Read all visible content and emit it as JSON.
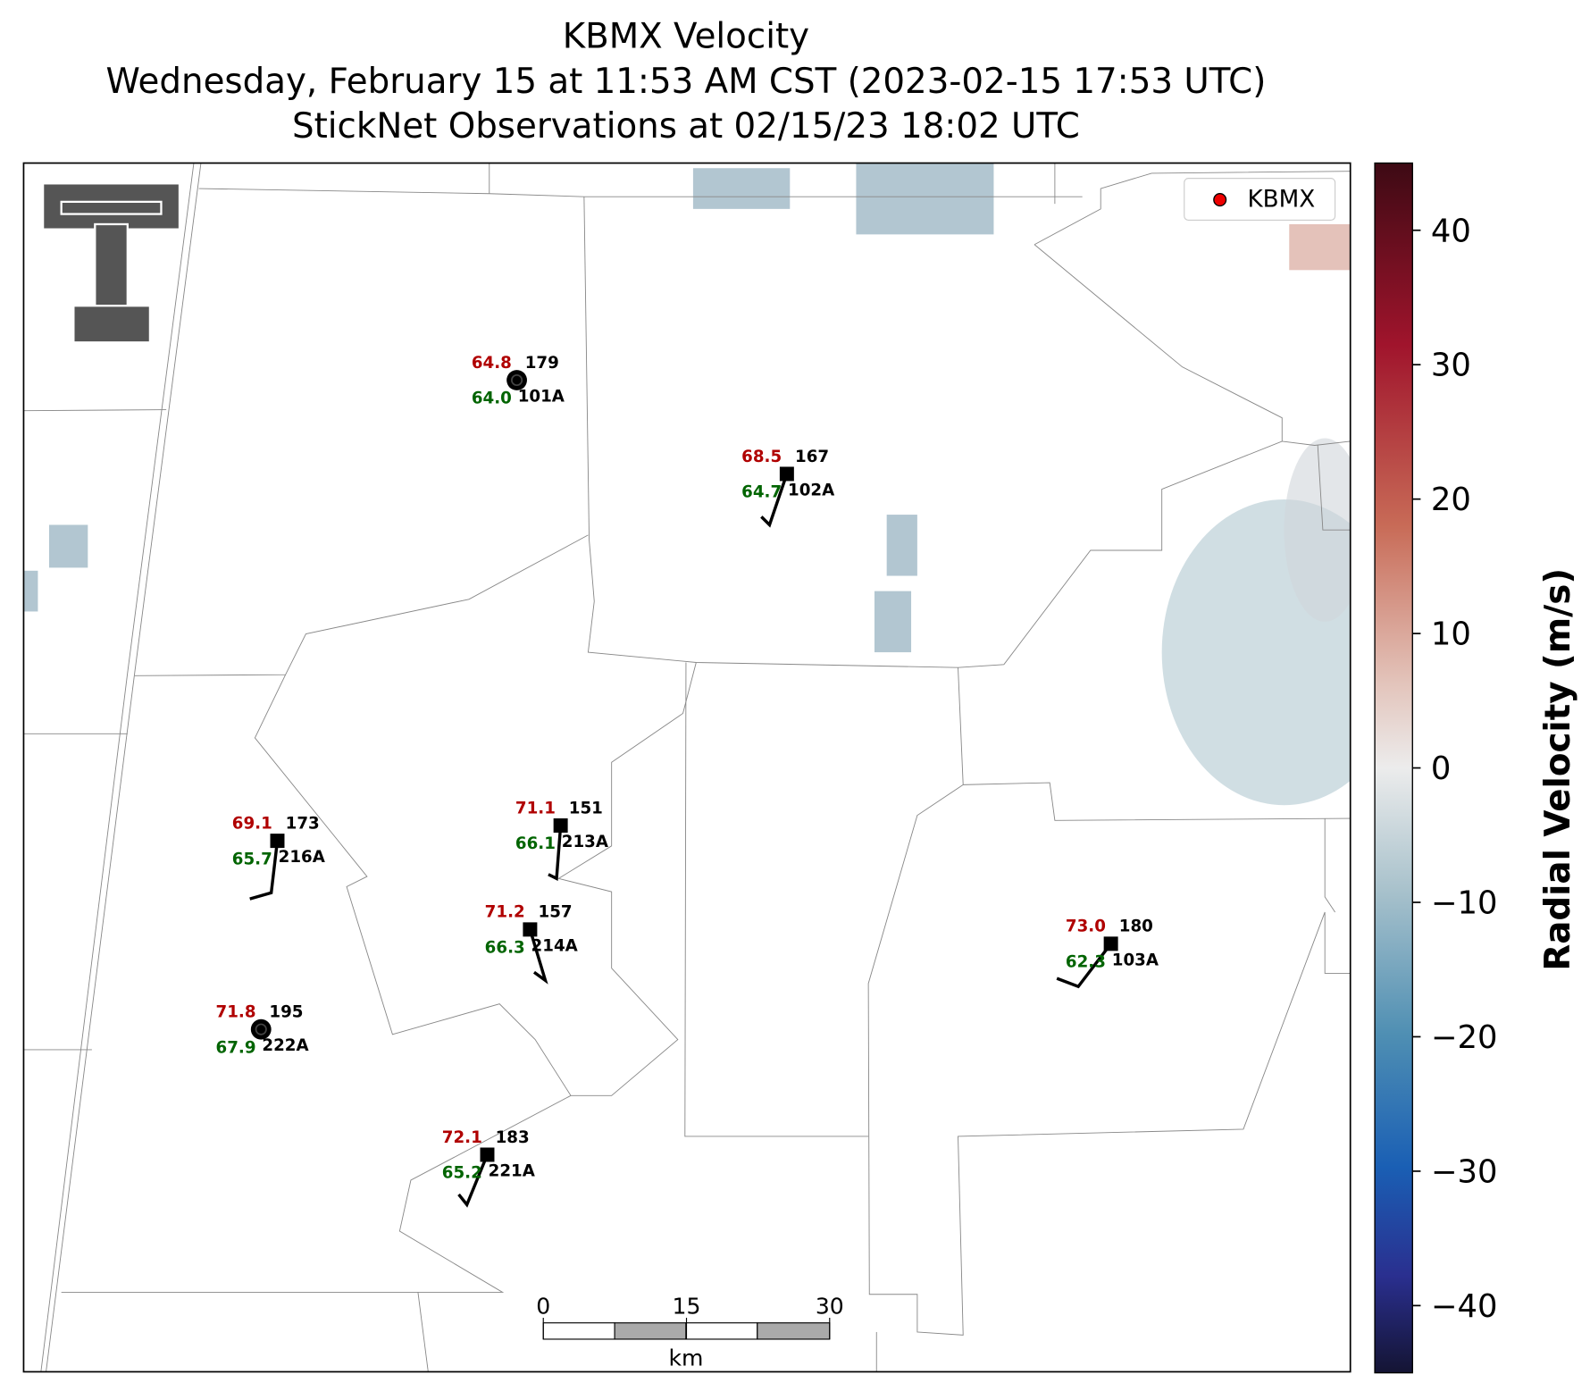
{
  "title": [
    "KBMX Velocity",
    "Wednesday, February 15 at 11:53 AM CST (2023-02-15 17:53 UTC)",
    "StickNet Observations at 02/15/23 18:02 UTC"
  ],
  "legend": "KBMX",
  "stations": [
    {
      "id": "101A",
      "temp": "64.8",
      "dew": "64.0",
      "value": "179"
    },
    {
      "id": "102A",
      "temp": "68.5",
      "dew": "64.7",
      "value": "167"
    },
    {
      "id": "216A",
      "temp": "69.1",
      "dew": "65.7",
      "value": "173"
    },
    {
      "id": "213A",
      "temp": "71.1",
      "dew": "66.1",
      "value": "151"
    },
    {
      "id": "214A",
      "temp": "71.2",
      "dew": "66.3",
      "value": "157"
    },
    {
      "id": "222A",
      "temp": "71.8",
      "dew": "67.9",
      "value": "195"
    },
    {
      "id": "221A",
      "temp": "72.1",
      "dew": "65.2",
      "value": "183"
    },
    {
      "id": "103A",
      "temp": "73.0",
      "dew": "62.3",
      "value": "180"
    }
  ],
  "colorbar": {
    "label": "Radial Velocity (m/s)",
    "clim": [
      -45,
      45
    ],
    "ticks": [
      40,
      30,
      20,
      10,
      0,
      {
        "value": -10,
        "label": "−10"
      },
      {
        "value": -20,
        "label": "−20"
      },
      {
        "value": -30,
        "label": "−30"
      },
      {
        "value": -40,
        "label": "−40"
      }
    ]
  },
  "scalebar": {
    "ticks": [
      0,
      15,
      30
    ],
    "unit": "km"
  }
}
